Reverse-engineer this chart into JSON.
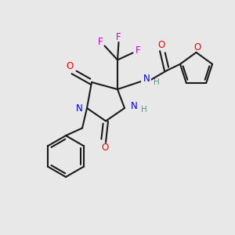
{
  "bg_color": "#e8e8e8",
  "bond_color": "#1a1a1a",
  "N_color": "#0000ff",
  "O_color": "#ff0000",
  "F_color": "#cc00cc",
  "NH_color": "#4a9a8a",
  "figsize": [
    3.0,
    3.0
  ],
  "dpi": 100,
  "xlim": [
    0,
    10
  ],
  "ylim": [
    0,
    10
  ]
}
